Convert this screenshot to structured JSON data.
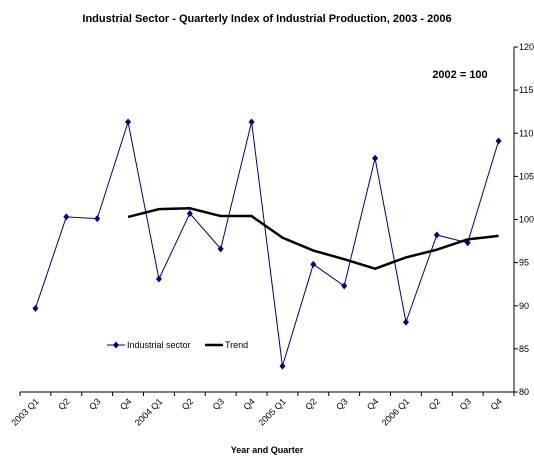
{
  "chart_data": {
    "type": "line",
    "title": "Industrial Sector - Quarterly Index of Industrial Production, 2003 - 2006",
    "annotation": "2002 = 100",
    "x_label": "Year and Quarter",
    "categories": [
      "2003 Q1",
      "Q2",
      "Q3",
      "Q4",
      "2004 Q1",
      "Q2",
      "Q3",
      "Q4",
      "2005 Q1",
      "Q2",
      "Q3",
      "Q4",
      "2006 Q1",
      "Q2",
      "Q3",
      "Q4"
    ],
    "series": [
      {
        "name": "Industrial sector",
        "color": "#000080",
        "values": [
          89.7,
          100.3,
          100.1,
          111.3,
          93.1,
          100.7,
          96.6,
          111.3,
          83.0,
          94.8,
          92.3,
          107.1,
          88.1,
          98.2,
          97.3,
          109.1
        ]
      },
      {
        "name": "Trend",
        "color": "#000000",
        "values": [
          null,
          null,
          null,
          100.3,
          101.2,
          101.3,
          100.4,
          100.4,
          97.9,
          96.4,
          95.4,
          94.3,
          95.6,
          96.5,
          97.7,
          98.1
        ]
      }
    ],
    "ylim": [
      80,
      120
    ],
    "yticks": [
      80,
      85,
      90,
      95,
      100,
      105,
      110,
      115,
      120
    ],
    "grid": false
  }
}
